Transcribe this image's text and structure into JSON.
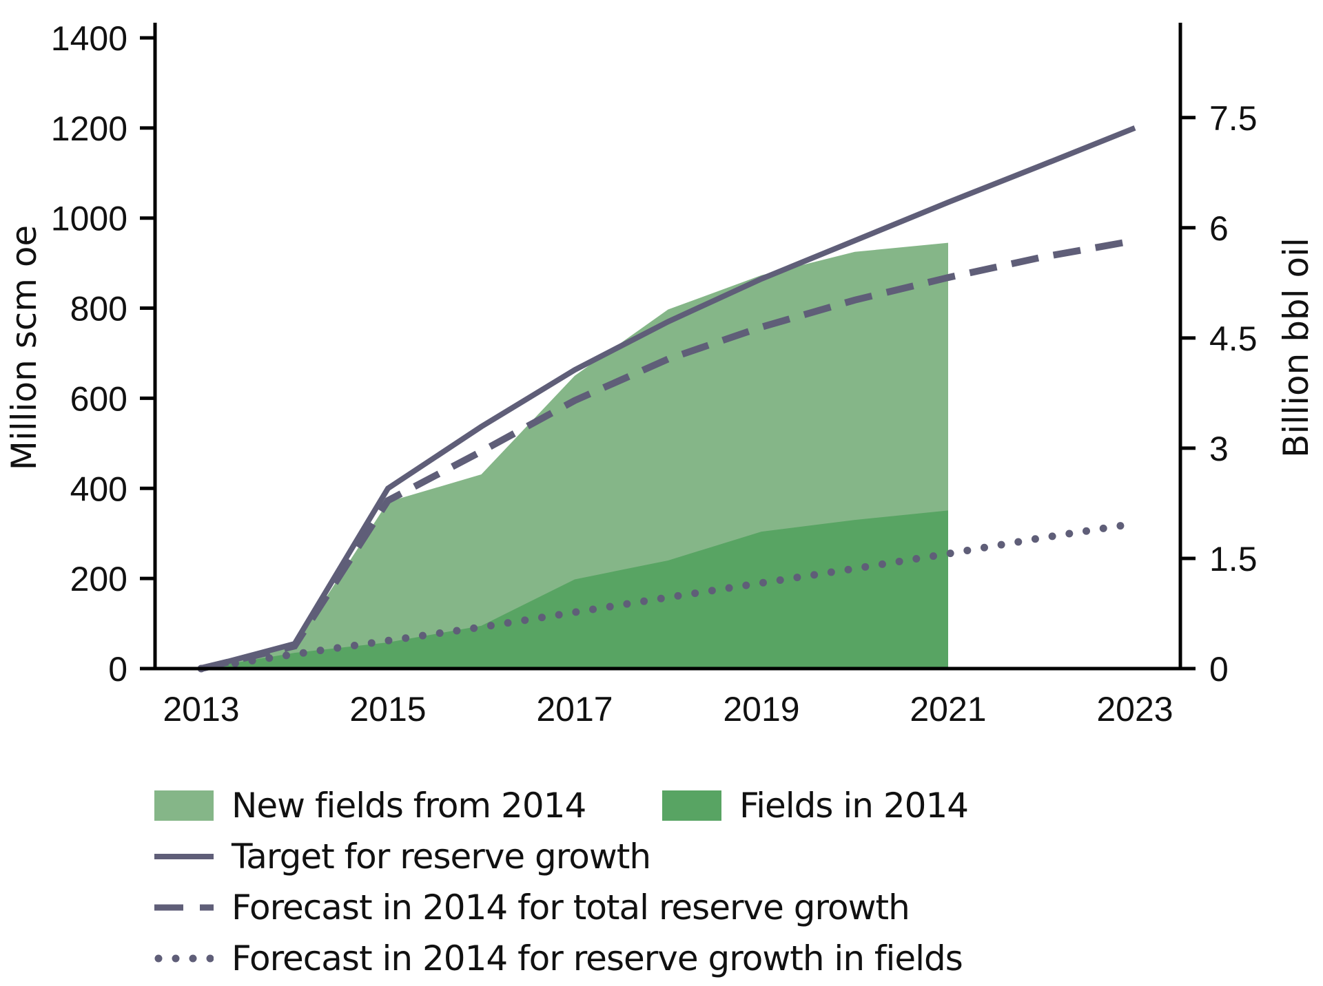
{
  "chart_data": {
    "type": "area",
    "title": "",
    "xlabel": "",
    "ylabel": "Million scm oe",
    "ylabel_right": "Billion bbl oil",
    "x": [
      2013,
      2014,
      2015,
      2016,
      2017,
      2018,
      2019,
      2020,
      2021,
      2022,
      2023
    ],
    "x_tick_labels": [
      "2013",
      "2015",
      "2017",
      "2019",
      "2021",
      "2023"
    ],
    "xlim": [
      2012.5,
      2023.65
    ],
    "ylim": [
      0,
      1400
    ],
    "y_ticks": [
      0,
      200,
      400,
      600,
      800,
      1000,
      1200,
      1400
    ],
    "y_tick_labels": [
      "0",
      "200",
      "400",
      "600",
      "800",
      "1000",
      "1200",
      "1400"
    ],
    "ylim_right": [
      0,
      8.75
    ],
    "y_ticks_right": [
      0,
      1.5,
      3,
      4.5,
      6,
      7.5
    ],
    "y_tick_labels_right": [
      "0",
      "1.5",
      "3",
      "4.5",
      "6",
      "7.5"
    ],
    "grid": false,
    "legend_position": "bottom",
    "series": [
      {
        "name": "Fields in 2014",
        "kind": "area",
        "color": "#58a463",
        "x": [
          2013,
          2014,
          2015,
          2016,
          2017,
          2018,
          2019,
          2020,
          2021
        ],
        "values": [
          0,
          35,
          58,
          95,
          198,
          240,
          304,
          330,
          351
        ]
      },
      {
        "name": "New fields from 2014",
        "kind": "area",
        "stack_note": "values are cumulative totals (top of light-green area)",
        "color": "#85b688",
        "x": [
          2013,
          2014,
          2015,
          2016,
          2017,
          2018,
          2019,
          2020,
          2021
        ],
        "values": [
          0,
          50,
          370,
          431,
          650,
          797,
          873,
          925,
          945
        ]
      },
      {
        "name": "Target for reserve growth",
        "kind": "line",
        "style": "solid",
        "color": "#5f5e78",
        "x": [
          2013,
          2014,
          2015,
          2016,
          2017,
          2018,
          2019,
          2020,
          2021,
          2022,
          2023
        ],
        "values": [
          0,
          55,
          400,
          537,
          663,
          770,
          865,
          950,
          1035,
          1117,
          1200
        ]
      },
      {
        "name": "Forecast in 2014 for total reserve growth",
        "kind": "line",
        "style": "dashed",
        "color": "#5f5e78",
        "x": [
          2013,
          2014,
          2015,
          2016,
          2017,
          2018,
          2019,
          2020,
          2021,
          2022,
          2023
        ],
        "values": [
          0,
          50,
          373,
          482,
          595,
          687,
          758,
          818,
          868,
          913,
          950
        ]
      },
      {
        "name": "Forecast in 2014 for reserve growth in fields",
        "kind": "line",
        "style": "dotted",
        "color": "#5f5e78",
        "x": [
          2013,
          2014,
          2015,
          2016,
          2017,
          2018,
          2019,
          2020,
          2021,
          2022,
          2023
        ],
        "values": [
          0,
          32,
          62,
          92,
          125,
          158,
          190,
          222,
          255,
          290,
          322
        ]
      }
    ]
  },
  "legend": {
    "items": [
      {
        "label": "New fields from 2014",
        "type": "fill",
        "color": "#85b688"
      },
      {
        "label": "Fields in 2014",
        "type": "fill",
        "color": "#58a463"
      },
      {
        "label": "Target for reserve growth",
        "type": "solid",
        "color": "#5f5e78"
      },
      {
        "label": "Forecast in 2014 for total reserve growth",
        "type": "dashed",
        "color": "#5f5e78"
      },
      {
        "label": "Forecast in 2014 for reserve growth in fields",
        "type": "dotted",
        "color": "#5f5e78"
      }
    ]
  }
}
